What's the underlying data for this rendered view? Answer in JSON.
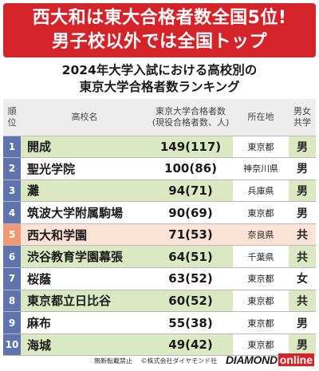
{
  "banner": {
    "line1": "西大和は東大合格者数全国5位!",
    "line2": "男子校以外では全国トップ"
  },
  "subtitle": {
    "line1": "2024年大学入試における高校別の",
    "line2": "東京大学合格者数ランキング"
  },
  "table": {
    "headers": {
      "rank_line1": "順",
      "rank_line2": "位",
      "school": "高校名",
      "count_line1": "東京大学合格者数",
      "count_line2": "(現役合格者数、人)",
      "location": "所在地",
      "type_line1": "男女",
      "type_line2": "共学"
    },
    "rows": [
      {
        "rank": "1",
        "school": "開成",
        "count": "149(117)",
        "location": "東京都",
        "type": "男"
      },
      {
        "rank": "2",
        "school": "聖光学院",
        "count": "100(86)",
        "location": "神奈川県",
        "type": "男"
      },
      {
        "rank": "3",
        "school": "灘",
        "count": "94(71)",
        "location": "兵庫県",
        "type": "男"
      },
      {
        "rank": "4",
        "school": "筑波大学附属駒場",
        "count": "90(69)",
        "location": "東京都",
        "type": "男"
      },
      {
        "rank": "5",
        "school": "西大和学園",
        "count": "71(53)",
        "location": "奈良県",
        "type": "共"
      },
      {
        "rank": "6",
        "school": "渋谷教育学園幕張",
        "count": "64(51)",
        "location": "千葉県",
        "type": "共"
      },
      {
        "rank": "7",
        "school": "桜蔭",
        "count": "63(52)",
        "location": "東京都",
        "type": "女"
      },
      {
        "rank": "8",
        "school": "東京都立日比谷",
        "count": "60(52)",
        "location": "東京都",
        "type": "共"
      },
      {
        "rank": "9",
        "school": "麻布",
        "count": "55(38)",
        "location": "東京都",
        "type": "男"
      },
      {
        "rank": "10",
        "school": "海城",
        "count": "49(42)",
        "location": "東京都",
        "type": "男"
      }
    ]
  },
  "footer": {
    "notice": "無断転載禁止",
    "copyright": "©株式会社ダイヤモンド社",
    "logo_part1": "DIAMOND",
    "logo_part2": "online"
  },
  "colors": {
    "banner": "#d5232a",
    "rank_cell": "#5f74ad",
    "highlight_rank": "#f09a74",
    "highlight_row": "#fde2d6",
    "stripe": "#dbe9c2"
  }
}
